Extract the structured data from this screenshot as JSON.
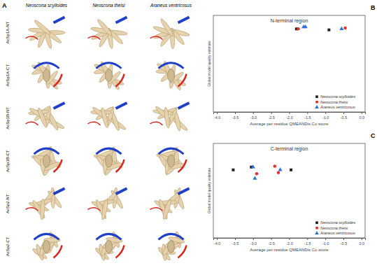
{
  "panel_a": {
    "label": "A",
    "columns": [
      "Neoscona scylloides",
      "Neoscona theisi",
      "Araneus ventricosus"
    ],
    "rows": [
      "AcSp1A-NT",
      "AcSp1A-CT",
      "AcSp1B-NT",
      "AcSp1B-CT",
      "AcSp2-NT",
      "AcSp2-CT"
    ]
  },
  "chart_data": [
    {
      "type": "scatter",
      "panel_label": "B",
      "title": "N-terminal region",
      "x_label": "Average per-residue QMEANDis Co score",
      "y_label": "Global model quality estimate",
      "xlim": [
        -4.1,
        0.1
      ],
      "xticks": [
        {
          "value": -4,
          "label": "-4.0"
        },
        {
          "value": -3.5,
          "label": "-3.5"
        },
        {
          "value": -3,
          "label": "-3.0"
        },
        {
          "value": -2.5,
          "label": "-2.5"
        },
        {
          "value": -2,
          "label": "-2.0"
        },
        {
          "value": -1.5,
          "label": "-1.5"
        },
        {
          "value": -1,
          "label": "-1.0"
        },
        {
          "value": -0.5,
          "label": "-0.5"
        },
        {
          "value": 0,
          "label": "0.0"
        }
      ],
      "ylim": [
        0,
        1
      ],
      "tick_labels": "x",
      "grid": false,
      "legend": "lower right",
      "series": [
        {
          "name": "Neoscona scylloides",
          "color": "#222222",
          "marker": "square",
          "x": [
            -1.8,
            -0.9
          ],
          "values": [
            0.86,
            0.85
          ]
        },
        {
          "name": "Neoscona theisi",
          "color": "#e8312a",
          "marker": "circle",
          "x": [
            -1.75,
            -0.45
          ],
          "values": [
            0.86,
            0.87
          ]
        },
        {
          "name": "Araneus ventricosus",
          "color": "#2f6fd6",
          "marker": "triangle",
          "x": [
            -1.6,
            -1.55,
            -0.55
          ],
          "values": [
            0.88,
            0.88,
            0.86
          ]
        }
      ]
    },
    {
      "type": "scatter",
      "panel_label": "C",
      "title": "C-terminal region",
      "x_label": "Average per-residue QMEANDis Co score",
      "y_label": "Global model quality estimate",
      "xlim": [
        -4.1,
        0.1
      ],
      "xticks": [
        {
          "value": -4,
          "label": "-4.0"
        },
        {
          "value": -3.5,
          "label": "-3.5"
        },
        {
          "value": -3,
          "label": "-3.0"
        },
        {
          "value": -2.5,
          "label": "-2.5"
        },
        {
          "value": -2,
          "label": "-2.0"
        },
        {
          "value": -1.5,
          "label": "-1.5"
        },
        {
          "value": -1,
          "label": "-1.0"
        },
        {
          "value": -0.5,
          "label": "-0.5"
        },
        {
          "value": 0,
          "label": "0.0"
        }
      ],
      "ylim": [
        0,
        1
      ],
      "tick_labels": "x",
      "grid": false,
      "legend": "lower right",
      "series": [
        {
          "name": "Neoscona scylloides",
          "color": "#222222",
          "marker": "square",
          "x": [
            -3.55,
            -3.05,
            -1.95
          ],
          "values": [
            0.72,
            0.75,
            0.72
          ]
        },
        {
          "name": "Neoscona theisi",
          "color": "#e8312a",
          "marker": "circle",
          "x": [
            -2.9,
            -2.4,
            -2.3
          ],
          "values": [
            0.68,
            0.76,
            0.69
          ]
        },
        {
          "name": "Araneus ventricosus",
          "color": "#2f6fd6",
          "marker": "triangle",
          "x": [
            -3.0,
            -2.95,
            -2.25
          ],
          "values": [
            0.75,
            0.63,
            0.72
          ]
        }
      ]
    }
  ]
}
